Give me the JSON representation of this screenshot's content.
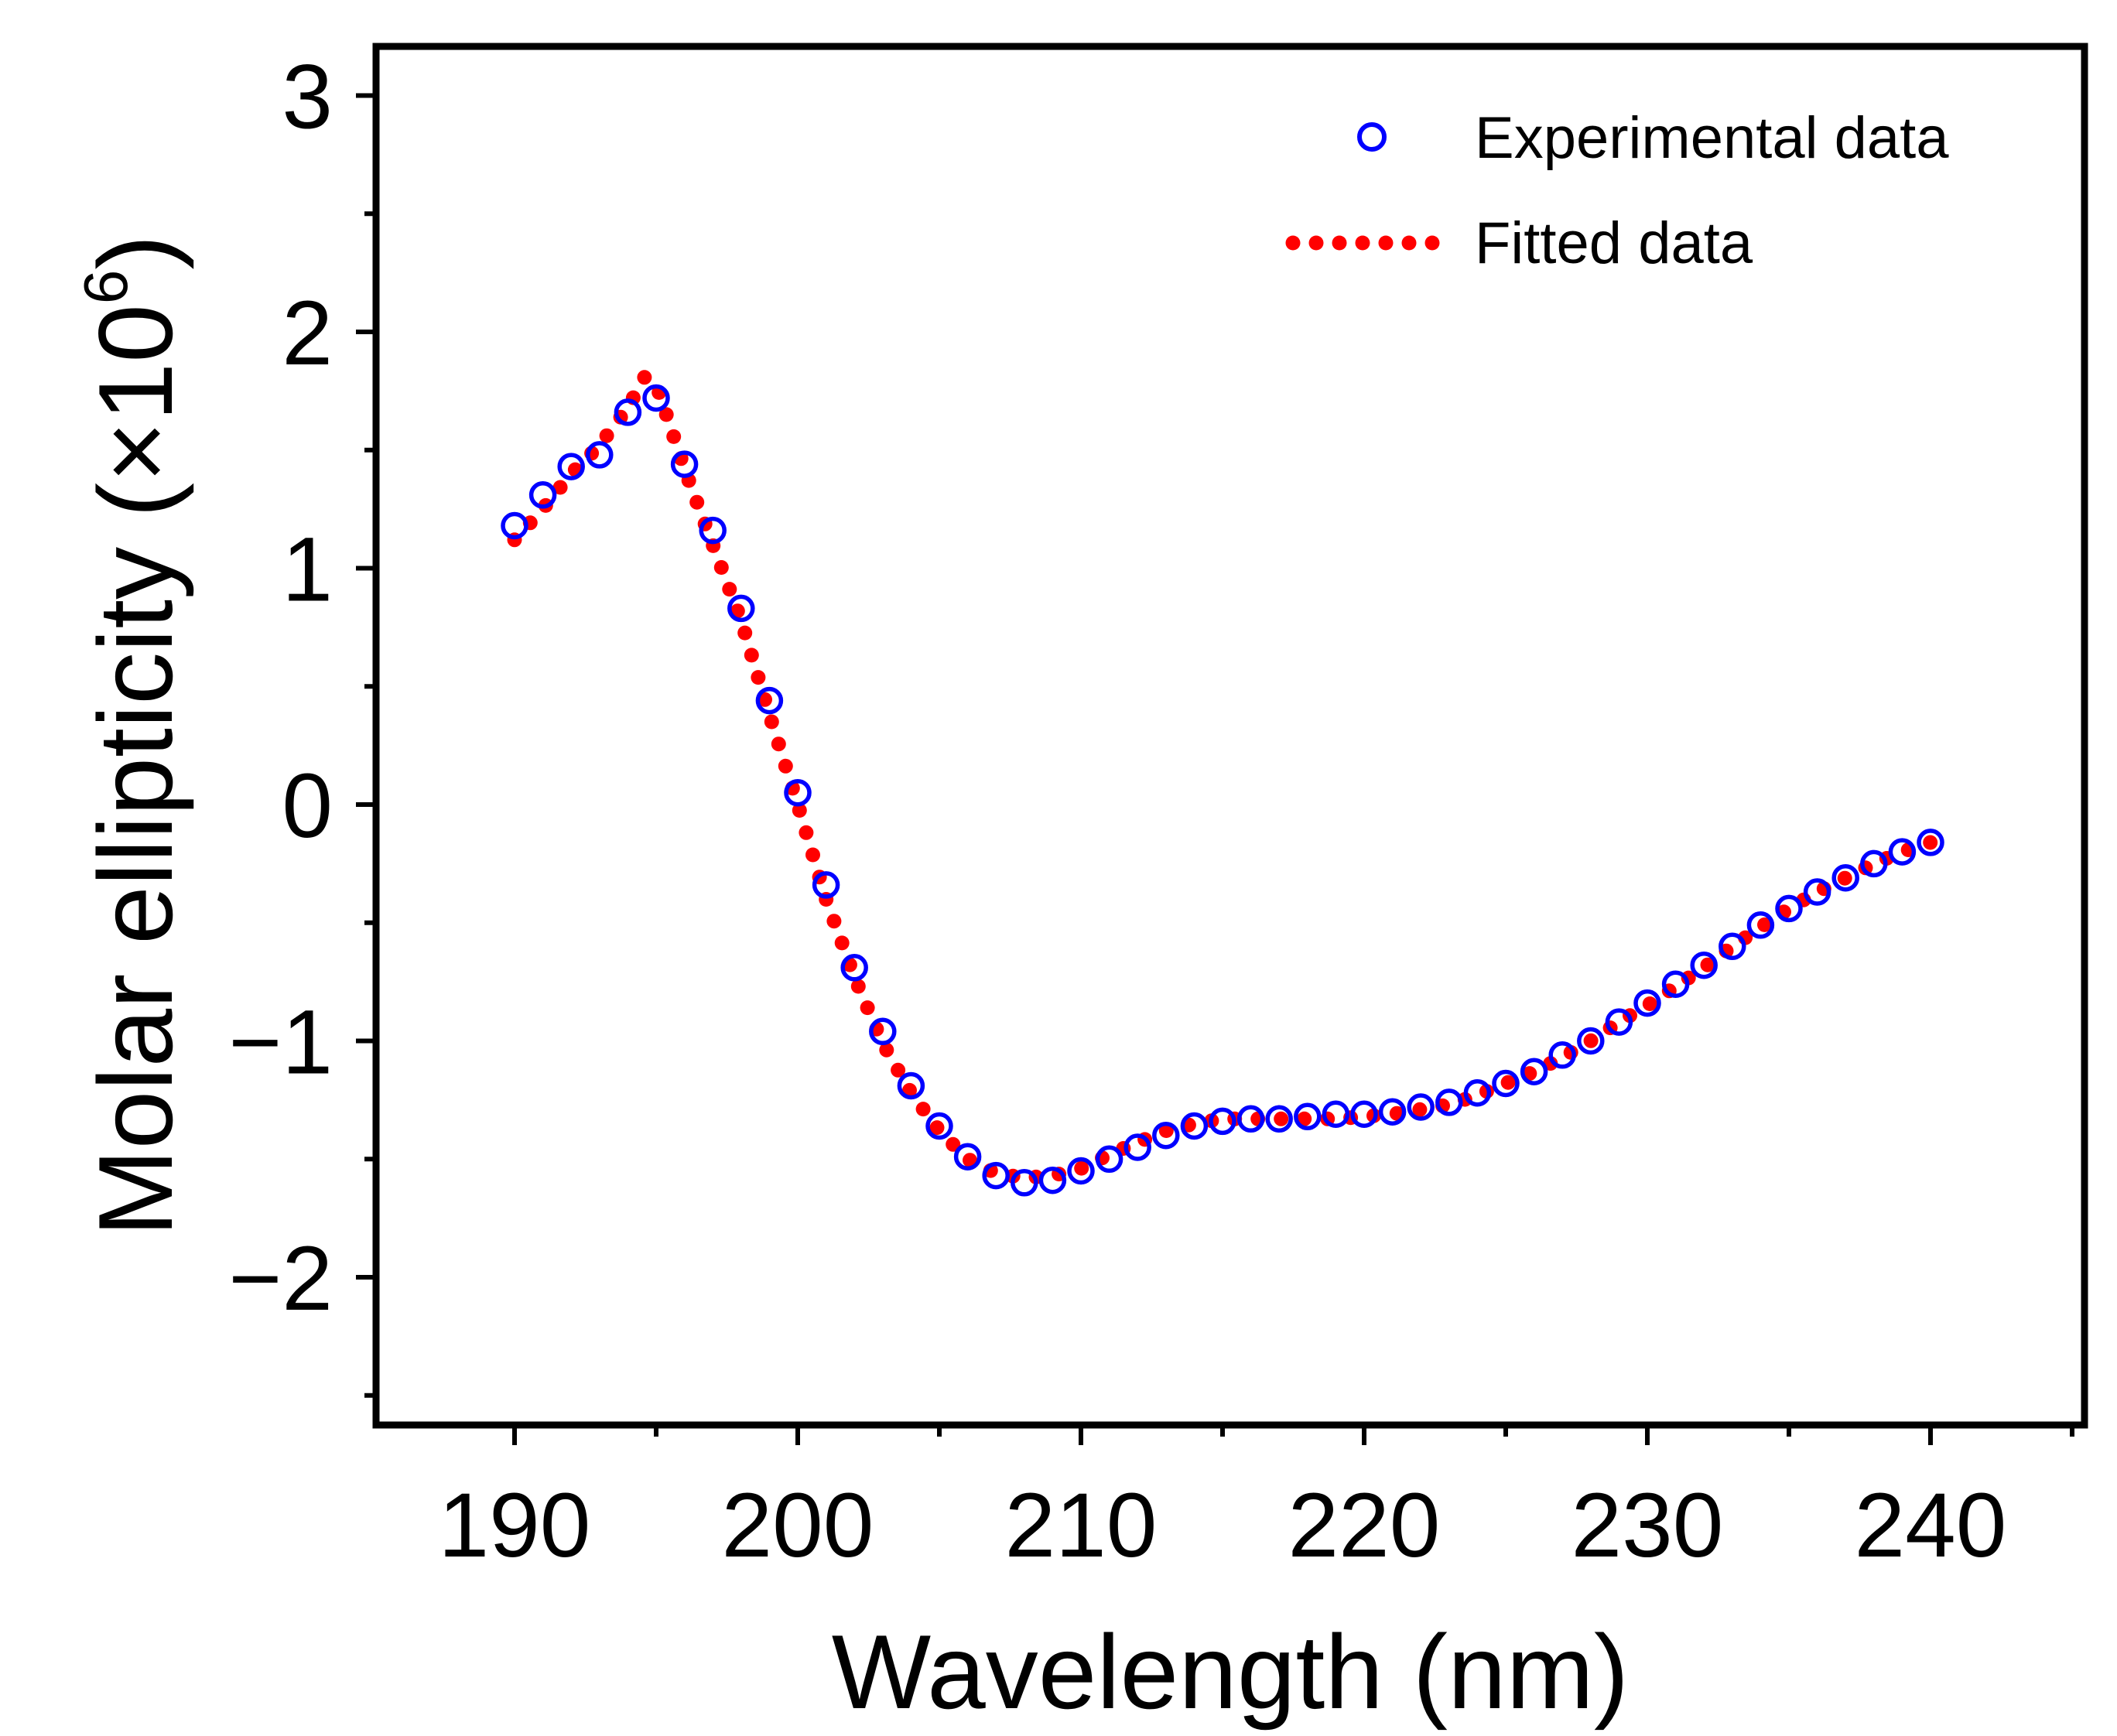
{
  "chart_data": {
    "type": "scatter",
    "title": "",
    "xlabel": "Wavelength (nm)",
    "ylabel": {
      "main": "Molar ellipticity (×10",
      "exponent": "6",
      "close": ")"
    },
    "xlim": [
      185,
      245
    ],
    "ylim": [
      -2.6,
      3.2
    ],
    "x_ticks": [
      190,
      200,
      210,
      220,
      230,
      240
    ],
    "x_tick_labels": [
      "190",
      "200",
      "210",
      "220",
      "230",
      "240"
    ],
    "y_ticks": [
      3,
      2,
      1,
      0,
      -1,
      -2
    ],
    "y_tick_labels": [
      "3",
      "2",
      "1",
      "0",
      "−1",
      "−2"
    ],
    "grid": false,
    "legend_position": "top-right",
    "legend": [
      {
        "label": "Experimental data",
        "marker": "open-circle",
        "color": "#0000ff"
      },
      {
        "label": "Fitted data",
        "marker": "dotted-line",
        "color": "#ff0000"
      }
    ],
    "series": [
      {
        "name": "Experimental data",
        "style": "open-circle",
        "color": "#0000ff",
        "x": [
          190,
          191,
          192,
          193,
          194,
          195,
          196,
          197,
          198,
          199,
          200,
          201,
          202,
          203,
          204,
          205,
          206,
          207,
          208,
          209,
          210,
          211,
          212,
          213,
          214,
          215,
          216,
          217,
          218,
          219,
          220,
          221,
          222,
          223,
          224,
          225,
          226,
          227,
          228,
          229,
          230,
          231,
          232,
          233,
          234,
          235,
          236,
          237,
          238,
          239,
          240
        ],
        "y": [
          1.18,
          1.31,
          1.43,
          1.48,
          1.66,
          1.72,
          1.44,
          1.16,
          0.83,
          0.44,
          0.05,
          -0.34,
          -0.69,
          -0.96,
          -1.19,
          -1.36,
          -1.49,
          -1.57,
          -1.6,
          -1.59,
          -1.55,
          -1.5,
          -1.45,
          -1.4,
          -1.36,
          -1.34,
          -1.33,
          -1.33,
          -1.32,
          -1.31,
          -1.31,
          -1.3,
          -1.28,
          -1.26,
          -1.22,
          -1.18,
          -1.13,
          -1.06,
          -1.0,
          -0.92,
          -0.84,
          -0.76,
          -0.68,
          -0.6,
          -0.51,
          -0.44,
          -0.37,
          -0.31,
          -0.25,
          -0.2,
          -0.16
        ]
      },
      {
        "name": "Fitted data",
        "style": "dotted-line",
        "color": "#ff0000",
        "x": [
          190,
          191,
          192,
          193,
          194,
          194.6,
          195,
          196,
          197,
          198,
          199,
          200,
          201,
          202,
          203,
          204,
          205,
          206,
          207,
          208,
          209,
          210,
          211,
          212,
          213,
          214,
          215,
          216,
          217,
          218,
          219,
          220,
          221,
          222,
          223,
          224,
          225,
          226,
          227,
          228,
          229,
          230,
          231,
          232,
          233,
          234,
          235,
          236,
          237,
          238,
          239,
          240
        ],
        "y": [
          1.12,
          1.25,
          1.4,
          1.52,
          1.68,
          1.81,
          1.78,
          1.42,
          1.1,
          0.78,
          0.38,
          0.0,
          -0.4,
          -0.73,
          -1.01,
          -1.22,
          -1.38,
          -1.5,
          -1.56,
          -1.58,
          -1.57,
          -1.54,
          -1.48,
          -1.43,
          -1.38,
          -1.35,
          -1.33,
          -1.33,
          -1.33,
          -1.33,
          -1.33,
          -1.32,
          -1.31,
          -1.29,
          -1.27,
          -1.23,
          -1.18,
          -1.13,
          -1.07,
          -1.0,
          -0.92,
          -0.85,
          -0.77,
          -0.69,
          -0.6,
          -0.52,
          -0.44,
          -0.37,
          -0.31,
          -0.25,
          -0.2,
          -0.16
        ]
      }
    ]
  }
}
